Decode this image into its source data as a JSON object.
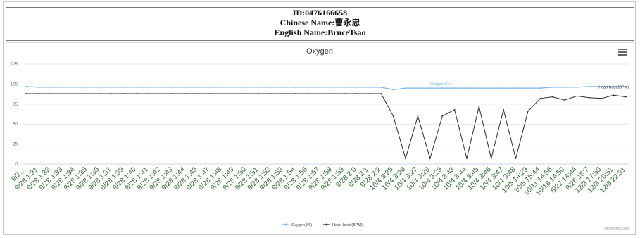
{
  "header": {
    "id_line": "ID:0476166658",
    "chinese_line": "Chinese Name:曹永忠",
    "english_line": "English Name:BruceTsao"
  },
  "chart_data": {
    "type": "line",
    "title": "Oxygen",
    "xlabel": "",
    "ylabel": "",
    "ylim": [
      0,
      125
    ],
    "yticks": [
      0,
      25,
      50,
      75,
      100,
      125
    ],
    "grid": true,
    "legend_position": "bottom-center",
    "credit": "Highcharts.com",
    "categories": [
      "9/2…",
      "9/28 1:31",
      "9/28 1:32",
      "9/28 1:33",
      "9/28 1:34",
      "9/28 1:35",
      "9/28 1:36",
      "9/28 1:37",
      "9/28 1:39",
      "9/28 1:40",
      "9/28 1:41",
      "9/28 1:42",
      "9/28 1:43",
      "9/28 1:44",
      "9/28 1:46",
      "9/28 1:47",
      "9/28 1:48",
      "9/28 1:49",
      "9/28 1:50",
      "9/28 1:51",
      "9/28 1:52",
      "9/28 1:53",
      "9/28 1:54",
      "9/28 1:56",
      "9/28 1:57",
      "9/28 1:58",
      "9/28 1:59",
      "9/28 2:0",
      "9/28 2:1",
      "9/28 2:2",
      "10/4 3:25",
      "10/4 3:26",
      "10/4 3:27",
      "10/4 3:28",
      "10/4 3:29",
      "10/4 3:43",
      "10/4 3:44",
      "10/4 3:45",
      "10/4 3:46",
      "10/4 3:47",
      "10/4 3:48",
      "10/5 14:29",
      "10/5 15:44",
      "10/11 14:56",
      "10/18 14:50",
      "5/22 14:44",
      "9/25 18:7",
      "12/3 17:50",
      "12/3 20:51",
      "12/3 22:31"
    ],
    "series": [
      {
        "name": "Oxygen (%)",
        "color": "#7cb5ec",
        "values": [
          97,
          96,
          96,
          96,
          96,
          96,
          96,
          96,
          96,
          96,
          96,
          96,
          96,
          96,
          96,
          96,
          96,
          96,
          96,
          96,
          96,
          96,
          96,
          96,
          96,
          96,
          96,
          96,
          96,
          96,
          93,
          95,
          95,
          95,
          95,
          95,
          95,
          95,
          95,
          95,
          95,
          95,
          95,
          96,
          96,
          96,
          97,
          97,
          97,
          97
        ]
      },
      {
        "name": "Heart beat (BPM)",
        "color": "#2b2b2b",
        "values": [
          88,
          88,
          88,
          88,
          88,
          88,
          88,
          88,
          88,
          88,
          88,
          88,
          88,
          88,
          88,
          88,
          88,
          88,
          88,
          88,
          88,
          88,
          88,
          88,
          88,
          88,
          88,
          88,
          88,
          88,
          60,
          7,
          60,
          7,
          60,
          68,
          7,
          72,
          7,
          68,
          7,
          66,
          82,
          84,
          80,
          85,
          83,
          82,
          86,
          84
        ]
      }
    ]
  }
}
